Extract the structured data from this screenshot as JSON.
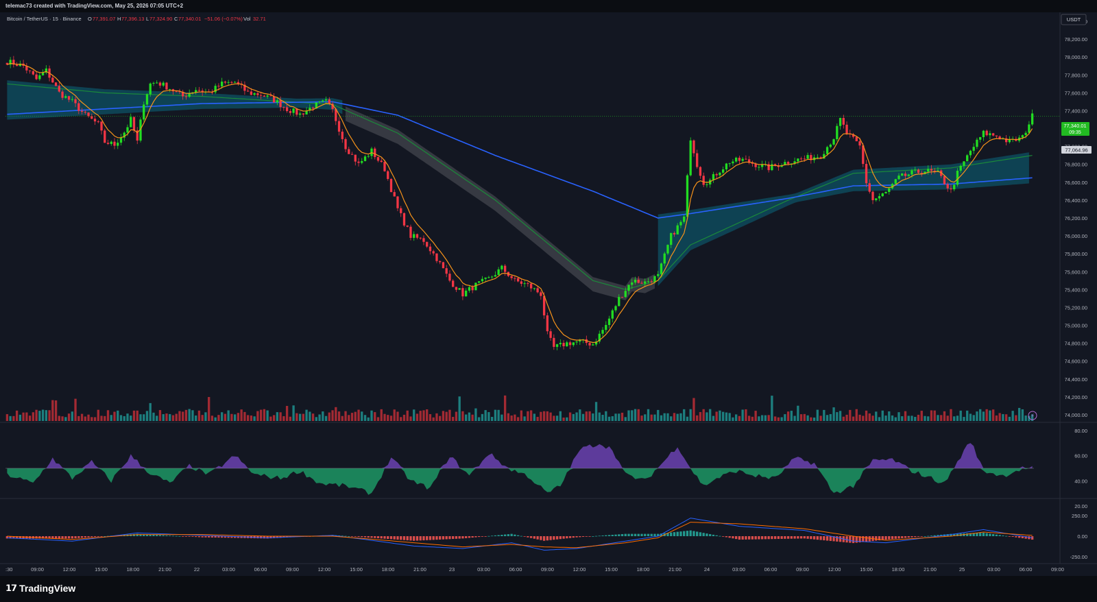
{
  "header": {
    "creator_line": "telemac73 created with TradingView.com, May 25, 2026 07:05 UTC+2"
  },
  "legend": {
    "symbol": "Bitcoin / TetherUS · 15 · Binance",
    "open_label": "O",
    "open": "77,391.07",
    "high_label": "H",
    "high": "77,396.13",
    "low_label": "L",
    "low": "77,324.90",
    "close_label": "C",
    "close": "77,340.01",
    "change": "−51.06 (−0.07%)",
    "vol_label": "Vol",
    "vol": "32.71"
  },
  "price_scale": {
    "currency": "USDT",
    "last_price": "77,340.01",
    "countdown": "09:35",
    "marker_price": "77,064.96"
  },
  "footer": {
    "brand": "TradingView"
  },
  "colors": {
    "background": "#131722",
    "up": "#22dd22",
    "down": "#f23645",
    "cloud_teal": "#0e4a5c",
    "cloud_gray": "#3b3d46",
    "ma_blue": "#2962ff",
    "ma_green": "#1b8a3a",
    "ema_orange": "#f7931a",
    "rsi_purple": "#9b59ff",
    "rsi_green": "#22dd88",
    "vol_up": "#1d7f7f",
    "vol_down": "#a32a33"
  },
  "chart_data": {
    "type": "candlestick",
    "symbol": "Bitcoin / TetherUS",
    "interval": "15",
    "exchange": "Binance",
    "y_range": [
      73900,
      78500
    ],
    "y_ticks": [
      "78,400.00",
      "78,200.00",
      "78,000.00",
      "77,800.00",
      "77,600.00",
      "77,400.00",
      "77,200.00",
      "77,000.00",
      "76,800.00",
      "76,600.00",
      "76,400.00",
      "76,200.00",
      "76,000.00",
      "75,800.00",
      "75,600.00",
      "75,400.00",
      "75,200.00",
      "75,000.00",
      "74,800.00",
      "74,600.00",
      "74,400.00",
      "74,200.00",
      "74,000.00"
    ],
    "x_ticks": [
      ":30",
      "09:00",
      "12:00",
      "15:00",
      "18:00",
      "21:00",
      "22",
      "03:00",
      "06:00",
      "09:00",
      "12:00",
      "15:00",
      "18:00",
      "21:00",
      "23",
      "03:00",
      "06:00",
      "09:00",
      "12:00",
      "15:00",
      "18:00",
      "21:00",
      "24",
      "03:00",
      "06:00",
      "09:00",
      "12:00",
      "15:00",
      "18:00",
      "21:00",
      "25",
      "03:00",
      "06:00",
      "09:00"
    ],
    "price_path": [
      [
        0,
        77950
      ],
      [
        5,
        77900
      ],
      [
        9,
        77750
      ],
      [
        12,
        77850
      ],
      [
        16,
        77600
      ],
      [
        20,
        77500
      ],
      [
        24,
        77350
      ],
      [
        28,
        77250
      ],
      [
        30,
        77050
      ],
      [
        33,
        77020
      ],
      [
        36,
        77160
      ],
      [
        38,
        77300
      ],
      [
        40,
        77050
      ],
      [
        42,
        77500
      ],
      [
        44,
        77700
      ],
      [
        46,
        77720
      ],
      [
        50,
        77650
      ],
      [
        54,
        77560
      ],
      [
        58,
        77640
      ],
      [
        62,
        77600
      ],
      [
        66,
        77700
      ],
      [
        70,
        77720
      ],
      [
        74,
        77600
      ],
      [
        78,
        77580
      ],
      [
        82,
        77520
      ],
      [
        86,
        77420
      ],
      [
        90,
        77360
      ],
      [
        94,
        77450
      ],
      [
        98,
        77500
      ],
      [
        100,
        77400
      ],
      [
        104,
        77000
      ],
      [
        108,
        76800
      ],
      [
        112,
        76950
      ],
      [
        116,
        76750
      ],
      [
        120,
        76300
      ],
      [
        124,
        76000
      ],
      [
        128,
        75950
      ],
      [
        132,
        75750
      ],
      [
        136,
        75500
      ],
      [
        140,
        75350
      ],
      [
        144,
        75450
      ],
      [
        148,
        75520
      ],
      [
        152,
        75640
      ],
      [
        156,
        75500
      ],
      [
        160,
        75450
      ],
      [
        164,
        75350
      ],
      [
        166,
        74900
      ],
      [
        168,
        74750
      ],
      [
        172,
        74800
      ],
      [
        176,
        74820
      ],
      [
        180,
        74790
      ],
      [
        184,
        75000
      ],
      [
        188,
        75300
      ],
      [
        192,
        75500
      ],
      [
        196,
        75480
      ],
      [
        200,
        75550
      ],
      [
        204,
        76000
      ],
      [
        208,
        76200
      ],
      [
        210,
        77100
      ],
      [
        212,
        76800
      ],
      [
        214,
        76600
      ],
      [
        216,
        76620
      ],
      [
        218,
        76700
      ],
      [
        222,
        76830
      ],
      [
        226,
        76850
      ],
      [
        230,
        76800
      ],
      [
        234,
        76760
      ],
      [
        238,
        76810
      ],
      [
        242,
        76850
      ],
      [
        246,
        76870
      ],
      [
        250,
        76900
      ],
      [
        254,
        77100
      ],
      [
        256,
        77300
      ],
      [
        258,
        77150
      ],
      [
        262,
        77000
      ],
      [
        264,
        76600
      ],
      [
        266,
        76400
      ],
      [
        270,
        76480
      ],
      [
        274,
        76650
      ],
      [
        278,
        76700
      ],
      [
        282,
        76730
      ],
      [
        286,
        76700
      ],
      [
        290,
        76500
      ],
      [
        292,
        76700
      ],
      [
        296,
        76950
      ],
      [
        300,
        77150
      ],
      [
        304,
        77120
      ],
      [
        308,
        77050
      ],
      [
        312,
        77100
      ],
      [
        315,
        77340
      ]
    ],
    "n_bars": 316,
    "ma_blue": [
      [
        0,
        77360
      ],
      [
        30,
        77420
      ],
      [
        60,
        77480
      ],
      [
        100,
        77500
      ],
      [
        120,
        77350
      ],
      [
        150,
        76900
      ],
      [
        180,
        76500
      ],
      [
        200,
        76200
      ],
      [
        210,
        76250
      ],
      [
        240,
        76420
      ],
      [
        260,
        76560
      ],
      [
        290,
        76580
      ],
      [
        315,
        76650
      ]
    ],
    "ma_green": [
      [
        0,
        77700
      ],
      [
        30,
        77600
      ],
      [
        60,
        77560
      ],
      [
        100,
        77470
      ],
      [
        120,
        77150
      ],
      [
        150,
        76400
      ],
      [
        180,
        75500
      ],
      [
        190,
        75400
      ],
      [
        200,
        75500
      ],
      [
        210,
        75900
      ],
      [
        240,
        76400
      ],
      [
        260,
        76700
      ],
      [
        290,
        76760
      ],
      [
        315,
        76900
      ]
    ],
    "sub_panels": [
      {
        "name": "RSI",
        "y_range": [
          20,
          80
        ],
        "y_ticks": [
          "80.00",
          "60.00",
          "40.00",
          "20.00"
        ],
        "mid": 50,
        "values": [
          [
            0,
            45
          ],
          [
            8,
            38
          ],
          [
            14,
            58
          ],
          [
            20,
            42
          ],
          [
            26,
            55
          ],
          [
            32,
            40
          ],
          [
            38,
            60
          ],
          [
            44,
            46
          ],
          [
            50,
            38
          ],
          [
            56,
            52
          ],
          [
            62,
            45
          ],
          [
            70,
            60
          ],
          [
            76,
            45
          ],
          [
            84,
            42
          ],
          [
            90,
            48
          ],
          [
            96,
            38
          ],
          [
            104,
            36
          ],
          [
            112,
            30
          ],
          [
            118,
            59
          ],
          [
            124,
            40
          ],
          [
            130,
            34
          ],
          [
            136,
            60
          ],
          [
            142,
            44
          ],
          [
            148,
            62
          ],
          [
            154,
            50
          ],
          [
            160,
            44
          ],
          [
            166,
            30
          ],
          [
            170,
            36
          ],
          [
            176,
            65
          ],
          [
            182,
            70
          ],
          [
            186,
            65
          ],
          [
            190,
            45
          ],
          [
            196,
            40
          ],
          [
            202,
            56
          ],
          [
            206,
            68
          ],
          [
            210,
            50
          ],
          [
            214,
            36
          ],
          [
            218,
            42
          ],
          [
            224,
            48
          ],
          [
            230,
            44
          ],
          [
            236,
            42
          ],
          [
            242,
            58
          ],
          [
            248,
            54
          ],
          [
            254,
            30
          ],
          [
            260,
            36
          ],
          [
            266,
            56
          ],
          [
            272,
            57
          ],
          [
            278,
            48
          ],
          [
            284,
            42
          ],
          [
            288,
            38
          ],
          [
            292,
            55
          ],
          [
            296,
            72
          ],
          [
            300,
            48
          ],
          [
            306,
            44
          ],
          [
            312,
            50
          ],
          [
            315,
            50
          ]
        ]
      },
      {
        "name": "MACD",
        "y_ticks": [
          "250.00",
          "0.00",
          "-250.00"
        ],
        "y_range": [
          -300,
          300
        ],
        "macd": [
          [
            0,
            -20
          ],
          [
            20,
            -60
          ],
          [
            40,
            40
          ],
          [
            60,
            10
          ],
          [
            80,
            -20
          ],
          [
            100,
            10
          ],
          [
            110,
            -40
          ],
          [
            125,
            -120
          ],
          [
            140,
            -150
          ],
          [
            155,
            -80
          ],
          [
            165,
            -170
          ],
          [
            175,
            -150
          ],
          [
            190,
            -60
          ],
          [
            200,
            0
          ],
          [
            210,
            220
          ],
          [
            225,
            120
          ],
          [
            245,
            70
          ],
          [
            260,
            -60
          ],
          [
            270,
            -80
          ],
          [
            290,
            20
          ],
          [
            300,
            80
          ],
          [
            315,
            -20
          ]
        ],
        "signal": [
          [
            0,
            0
          ],
          [
            20,
            -40
          ],
          [
            40,
            20
          ],
          [
            60,
            20
          ],
          [
            80,
            0
          ],
          [
            100,
            0
          ],
          [
            110,
            -30
          ],
          [
            125,
            -80
          ],
          [
            140,
            -130
          ],
          [
            155,
            -100
          ],
          [
            165,
            -130
          ],
          [
            175,
            -140
          ],
          [
            190,
            -80
          ],
          [
            200,
            -20
          ],
          [
            210,
            170
          ],
          [
            225,
            150
          ],
          [
            245,
            90
          ],
          [
            260,
            0
          ],
          [
            270,
            -50
          ],
          [
            290,
            0
          ],
          [
            300,
            50
          ],
          [
            315,
            10
          ]
        ]
      }
    ]
  }
}
